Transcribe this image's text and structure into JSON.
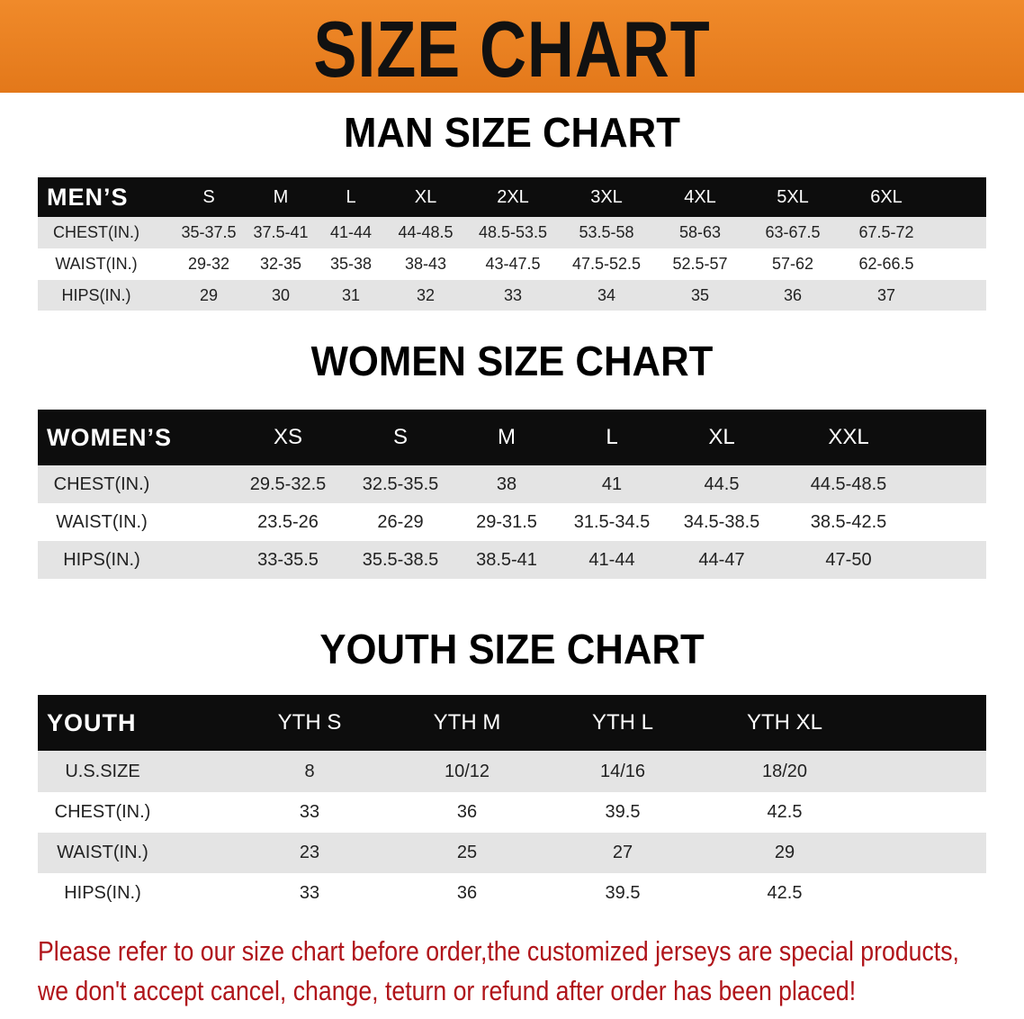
{
  "banner": {
    "title": "SIZE CHART",
    "color": "#e8801f"
  },
  "men": {
    "title": "MAN SIZE CHART",
    "header": [
      "MEN’S",
      "S",
      "M",
      "L",
      "XL",
      "2XL",
      "3XL",
      "4XL",
      "5XL",
      "6XL"
    ],
    "rows": [
      [
        "CHEST(IN.)",
        "35-37.5",
        "37.5-41",
        "41-44",
        "44-48.5",
        "48.5-53.5",
        "53.5-58",
        "58-63",
        "63-67.5",
        "67.5-72"
      ],
      [
        "WAIST(IN.)",
        "29-32",
        "32-35",
        "35-38",
        "38-43",
        "43-47.5",
        "47.5-52.5",
        "52.5-57",
        "57-62",
        "62-66.5"
      ],
      [
        "HIPS(IN.)",
        "29",
        "30",
        "31",
        "32",
        "33",
        "34",
        "35",
        "36",
        "37"
      ]
    ]
  },
  "women": {
    "title": "WOMEN SIZE CHART",
    "header": [
      "WOMEN’S",
      "XS",
      "S",
      "M",
      "L",
      "XL",
      "XXL"
    ],
    "rows": [
      [
        "CHEST(IN.)",
        "29.5-32.5",
        "32.5-35.5",
        "38",
        "41",
        "44.5",
        "44.5-48.5"
      ],
      [
        "WAIST(IN.)",
        "23.5-26",
        "26-29",
        "29-31.5",
        "31.5-34.5",
        "34.5-38.5",
        "38.5-42.5"
      ],
      [
        "HIPS(IN.)",
        "33-35.5",
        "35.5-38.5",
        "38.5-41",
        "41-44",
        "44-47",
        "47-50"
      ]
    ]
  },
  "youth": {
    "title": "YOUTH SIZE CHART",
    "header": [
      "YOUTH",
      "YTH S",
      "YTH M",
      "YTH L",
      "YTH XL"
    ],
    "rows": [
      [
        "U.S.SIZE",
        "8",
        "10/12",
        "14/16",
        "18/20"
      ],
      [
        "CHEST(IN.)",
        "33",
        "36",
        "39.5",
        "42.5"
      ],
      [
        "WAIST(IN.)",
        "23",
        "25",
        "27",
        "29"
      ],
      [
        "HIPS(IN.)",
        "33",
        "36",
        "39.5",
        "42.5"
      ]
    ]
  },
  "footer": {
    "line1": "Please refer to our size chart before order,the customized jerseys are special products,",
    "line2": "we don't accept cancel, change, teturn or refund after order has been placed!",
    "color": "#b0141a"
  }
}
